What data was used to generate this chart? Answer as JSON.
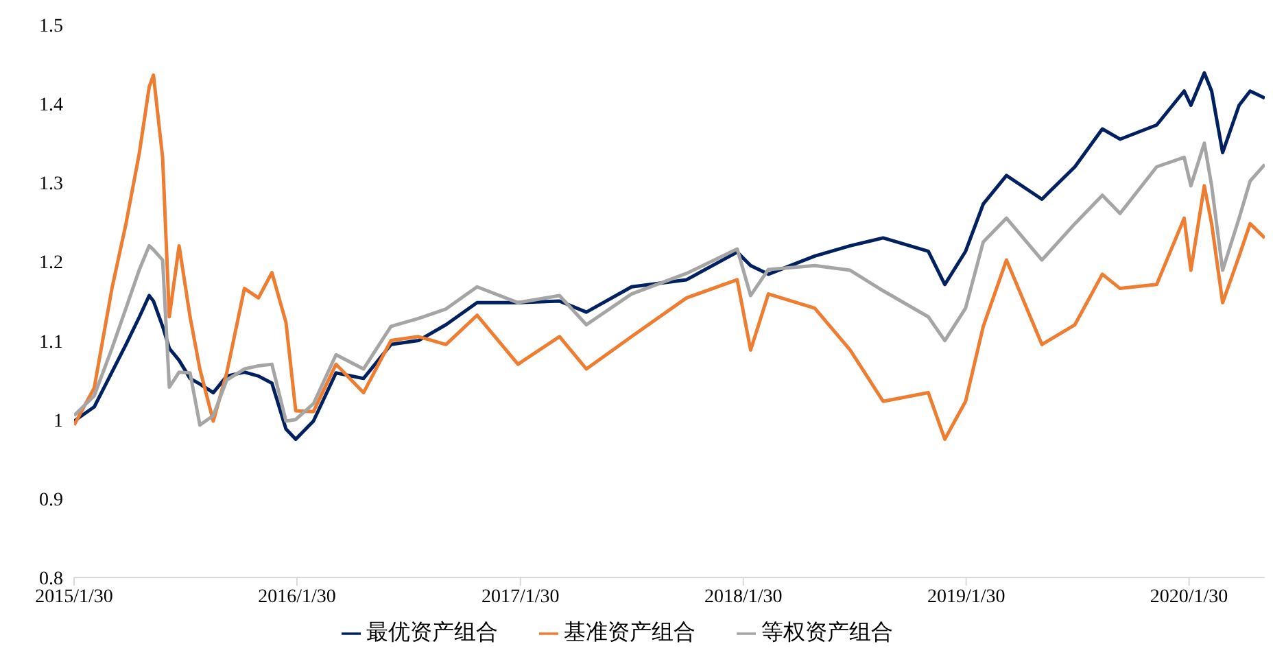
{
  "chart_data": {
    "type": "line",
    "x": [
      "2015-01-30",
      "2015-03-04",
      "2015-04-02",
      "2015-04-25",
      "2015-05-17",
      "2015-06-02",
      "2015-06-09",
      "2015-06-24",
      "2015-07-05",
      "2015-07-21",
      "2015-08-08",
      "2015-08-24",
      "2015-09-15",
      "2015-10-07",
      "2015-11-05",
      "2015-11-28",
      "2015-12-20",
      "2016-01-12",
      "2016-01-28",
      "2016-02-26",
      "2016-04-03",
      "2016-05-18",
      "2016-07-02",
      "2016-08-16",
      "2016-09-30",
      "2016-11-20",
      "2017-01-26",
      "2017-04-04",
      "2017-05-18",
      "2017-07-31",
      "2017-10-29",
      "2018-01-20",
      "2018-02-11",
      "2018-03-12",
      "2018-05-27",
      "2018-07-24",
      "2018-09-16",
      "2018-11-29",
      "2018-12-26",
      "2019-01-29",
      "2019-02-27",
      "2019-04-06",
      "2019-06-03",
      "2019-07-27",
      "2019-09-10",
      "2019-10-09",
      "2019-12-08",
      "2020-01-22",
      "2020-02-02",
      "2020-02-24",
      "2020-03-07",
      "2020-03-25",
      "2020-04-21",
      "2020-05-09",
      "2020-06-02"
    ],
    "series": [
      {
        "name": "最优资产组合",
        "color": "#002060",
        "values": [
          0.998,
          1.016,
          1.06,
          1.095,
          1.13,
          1.157,
          1.15,
          1.118,
          1.09,
          1.075,
          1.052,
          1.045,
          1.034,
          1.055,
          1.06,
          1.055,
          1.046,
          0.988,
          0.975,
          0.998,
          1.059,
          1.052,
          1.095,
          1.1,
          1.12,
          1.148,
          1.148,
          1.15,
          1.136,
          1.168,
          1.177,
          1.212,
          1.195,
          1.184,
          1.207,
          1.22,
          1.23,
          1.213,
          1.171,
          1.213,
          1.273,
          1.309,
          1.279,
          1.32,
          1.368,
          1.355,
          1.373,
          1.416,
          1.398,
          1.439,
          1.416,
          1.338,
          1.398,
          1.416,
          1.407
        ]
      },
      {
        "name": "基准资产组合",
        "color": "#ed7d31",
        "values": [
          0.993,
          1.04,
          1.166,
          1.248,
          1.338,
          1.421,
          1.436,
          1.332,
          1.13,
          1.22,
          1.13,
          1.064,
          0.998,
          1.059,
          1.166,
          1.154,
          1.186,
          1.123,
          1.011,
          1.01,
          1.07,
          1.034,
          1.1,
          1.105,
          1.095,
          1.132,
          1.07,
          1.105,
          1.064,
          1.105,
          1.154,
          1.177,
          1.088,
          1.159,
          1.141,
          1.088,
          1.023,
          1.034,
          0.975,
          1.023,
          1.118,
          1.202,
          1.095,
          1.12,
          1.184,
          1.166,
          1.171,
          1.255,
          1.189,
          1.296,
          1.248,
          1.148,
          1.207,
          1.248,
          1.23
        ]
      },
      {
        "name": "等权资产组合",
        "color": "#a5a5a5",
        "values": [
          1.005,
          1.03,
          1.09,
          1.141,
          1.19,
          1.22,
          1.215,
          1.202,
          1.041,
          1.06,
          1.059,
          0.993,
          1.005,
          1.05,
          1.064,
          1.068,
          1.07,
          0.998,
          1.0,
          1.02,
          1.082,
          1.064,
          1.118,
          1.128,
          1.14,
          1.168,
          1.148,
          1.157,
          1.12,
          1.159,
          1.185,
          1.216,
          1.157,
          1.19,
          1.195,
          1.189,
          1.163,
          1.13,
          1.1,
          1.141,
          1.225,
          1.255,
          1.202,
          1.248,
          1.284,
          1.261,
          1.32,
          1.332,
          1.296,
          1.35,
          1.296,
          1.189,
          1.255,
          1.302,
          1.323
        ]
      }
    ],
    "xlim": [
      "2015-01-30",
      "2020-06-02"
    ],
    "xticks": [
      {
        "value": "2015-01-30",
        "label": "2015/1/30"
      },
      {
        "value": "2016-01-30",
        "label": "2016/1/30"
      },
      {
        "value": "2017-01-30",
        "label": "2017/1/30"
      },
      {
        "value": "2018-01-30",
        "label": "2018/1/30"
      },
      {
        "value": "2019-01-30",
        "label": "2019/1/30"
      },
      {
        "value": "2020-01-30",
        "label": "2020/1/30"
      }
    ],
    "ylim": [
      0.8,
      1.5
    ],
    "yticks": [
      0.8,
      0.9,
      1,
      1.1,
      1.2,
      1.3,
      1.4,
      1.5
    ],
    "legend": "bottom"
  }
}
